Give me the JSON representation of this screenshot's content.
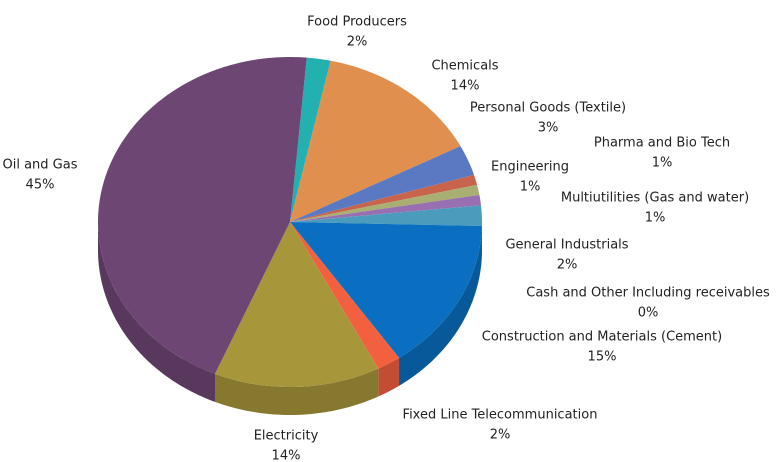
{
  "chart_data": {
    "type": "pie3d",
    "categories": [
      "Food Producers",
      "Chemicals",
      "Personal Goods (Textile)",
      "Pharma and Bio Tech",
      "Engineering",
      "Multiutilities (Gas and water)",
      "General Industrials",
      "Cash and Other Including receivables",
      "Construction and Materials (Cement)",
      "Fixed Line Telecommunication",
      "Electricity",
      "Oil and Gas"
    ],
    "values": [
      2,
      14,
      3,
      1,
      1,
      1,
      2,
      0,
      15,
      2,
      14,
      45
    ],
    "value_labels": [
      "2%",
      "14%",
      "3%",
      "1%",
      "1%",
      "1%",
      "2%",
      "0%",
      "15%",
      "2%",
      "14%",
      "45%"
    ],
    "colors": [
      "#22b0b0",
      "#e08f4e",
      "#5b78c2",
      "#c8644c",
      "#a9ae72",
      "#9870b2",
      "#4b9cbc",
      "#d8a274",
      "#0a6fc0",
      "#f2603f",
      "#a8963b",
      "#6e4673"
    ]
  }
}
